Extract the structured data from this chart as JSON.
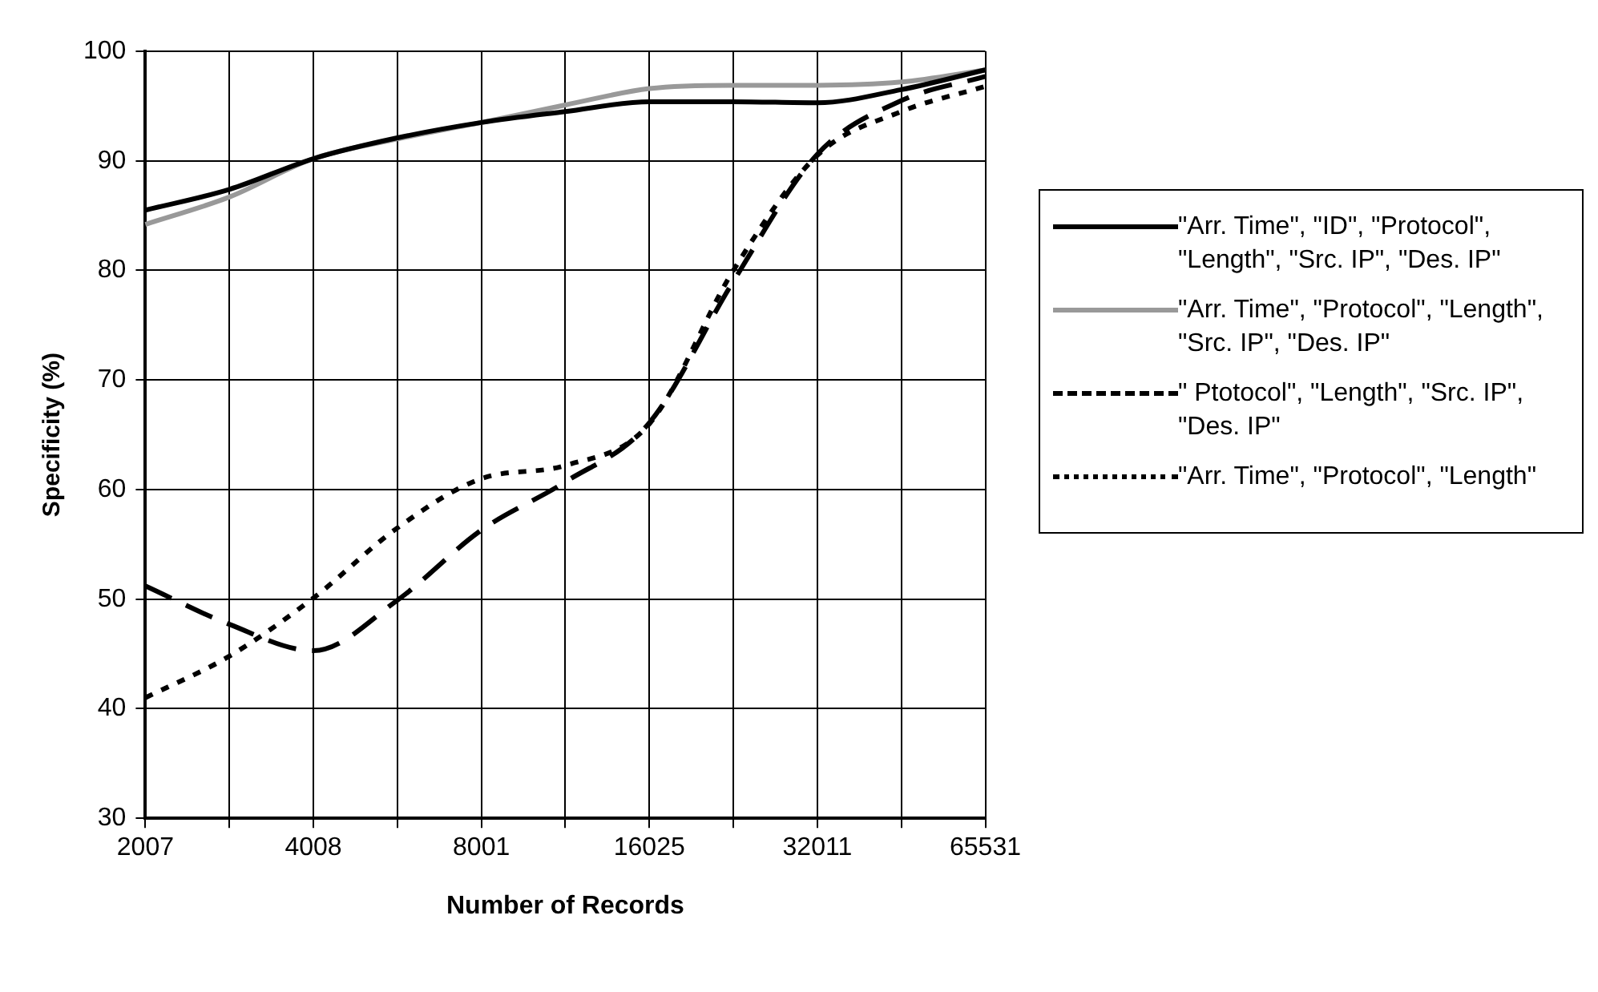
{
  "chart_data": {
    "type": "line",
    "xlabel": "Number of Records",
    "ylabel": "Specificity (%)",
    "categories": [
      "2007",
      null,
      "4008",
      null,
      "8001",
      null,
      "16025",
      null,
      "32011",
      null,
      "65531"
    ],
    "ylim": [
      30,
      100
    ],
    "yticks": [
      30,
      40,
      50,
      60,
      70,
      80,
      90,
      100
    ],
    "grid": true,
    "legend": "right",
    "marker": "none",
    "series": [
      {
        "name": "\"Arr. Time\", \"ID\", \"Protocol\", \"Length\", \"Src. IP\", \"Des. IP\"",
        "color": "#000000",
        "line_style": "solid",
        "values": [
          85.5,
          87.4,
          90.2,
          92.1,
          93.5,
          94.5,
          95.4,
          95.4,
          95.3,
          96.5,
          98.3
        ]
      },
      {
        "name": "\"Arr. Time\", \"Protocol\", \"Length\", \"Src. IP\", \"Des. IP\"",
        "color": "#999999",
        "line_style": "solid",
        "values": [
          84.2,
          86.7,
          90.2,
          92,
          93.5,
          95.1,
          96.6,
          96.9,
          96.9,
          97.2,
          98.3
        ]
      },
      {
        "name": "\" Ptotocol\", \"Length\", \"Src. IP\", \"Des. IP\"",
        "color": "#000000",
        "line_style": "dashed",
        "values": [
          51.2,
          47.7,
          45.3,
          49.9,
          56.3,
          60.7,
          66.1,
          79,
          90.6,
          95.5,
          97.7
        ]
      },
      {
        "name": "\"Arr. Time\", \"Protocol\", \"Length\"",
        "color": "#000000",
        "line_style": "dotted",
        "values": [
          41,
          44.8,
          50.1,
          56.5,
          61,
          62.2,
          66,
          80,
          90.5,
          94.5,
          96.8
        ]
      }
    ]
  }
}
